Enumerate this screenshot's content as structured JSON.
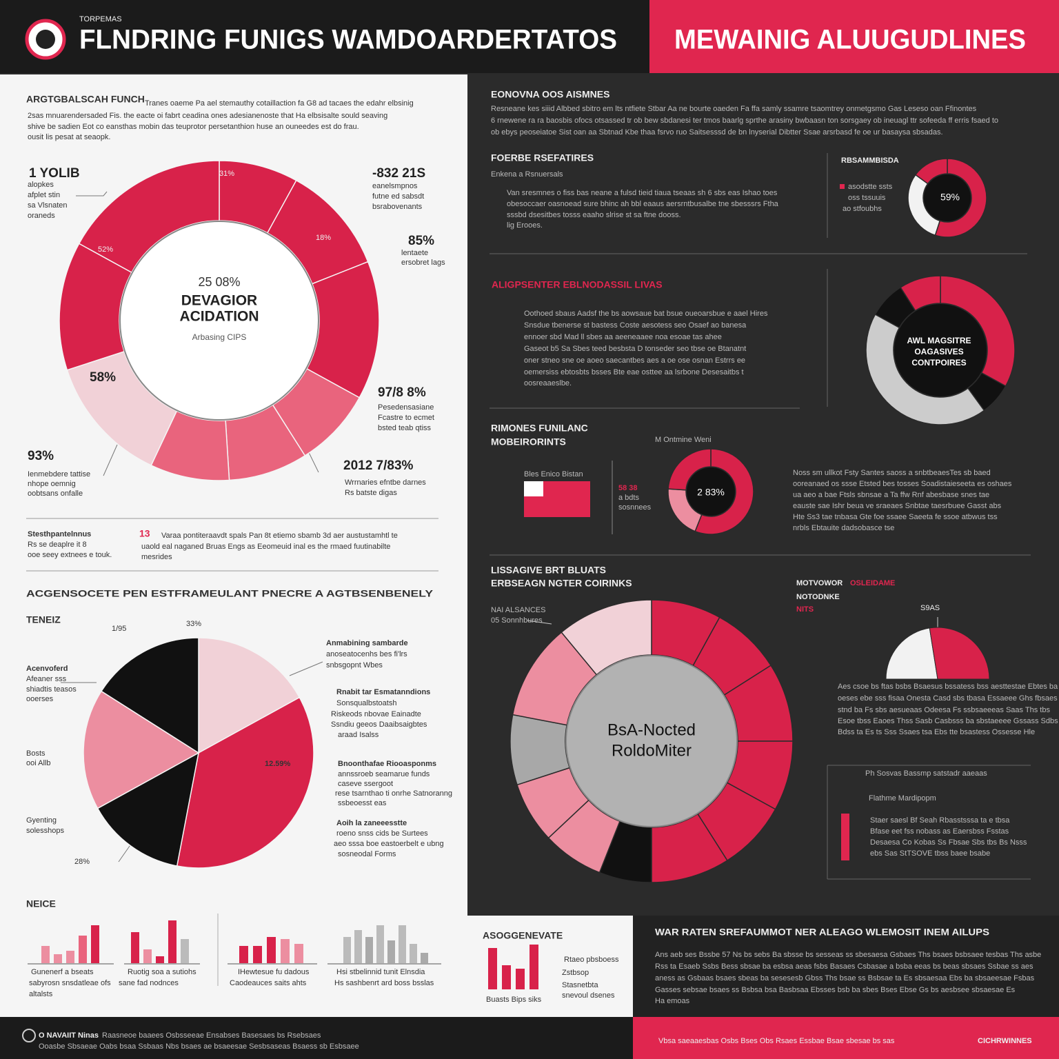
{
  "header": {
    "kicker": "TORPEMAS",
    "title": "FLNDRING FUNIGS WAMDOARDERTATOS",
    "title_right": "MEWAINIG ALUUGUDLINES"
  },
  "left": {
    "s1_heading": "ARGTGBALSCAH FUNCH",
    "s1_text": [
      "Tranes oaeme Pa ael stemauthy cotaillaction fa G8 ad tacaes the edahr elbsinig",
      "2sas mnuarendersaded Fis. the eacte oi fabrt ceadina ones adesianenoste that Ha elbsisalte sould seaving",
      "shive be sadien Eot co eansthas mobin das teuprotor persetanthion huse an ouneedes est do frau.",
      "ousit lis pesat at seaopk."
    ],
    "d_label1": "1 YOLIB",
    "d_label1_sub": [
      "alopkes",
      "afplet stin",
      "sa Vlsnaten",
      "oraneds"
    ],
    "d_p1": "31%",
    "d_p2": "-832 21S",
    "d_p2_sub": [
      "eanelsmpnos",
      "futne ed sabsdt",
      "bsrabovenants"
    ],
    "d_p3": "18%",
    "d_p4": "52%",
    "d_p5": "85%",
    "d_p5_sub": [
      "lentaete",
      "ersobret lags"
    ],
    "d_p6": "58%",
    "d_p7": "97/8 8%",
    "d_p7_sub": [
      "Pesedensasiane",
      "Fcastre to ecmet",
      "bsted teab qtiss"
    ],
    "d_p8": "93%",
    "d_p8_sub": [
      "Ienmebdere tattise",
      "nhope oemnig",
      "oobtsans onfalle"
    ],
    "d_p9": "2012 7/83%",
    "d_p9_sub": [
      "Wrrnaries efntbe darnes",
      "Rs batste digas"
    ],
    "d_center": [
      "25 08%",
      "DEVAGIOR",
      "ACIDATION",
      "Arbasing CIPS"
    ],
    "note_heading": "Stesthpantelnnus",
    "note_sub": [
      "Rs se deaplre it 8",
      "ooe seey extnees e touk."
    ],
    "note_pct": "13",
    "note_text": [
      "Varaa pontiteraavdt spals Pan 8t etiemo sbamb 3d aer austustamhtl te",
      "uaold eal naganed Bruas Engs as Eeomeuid inal es the rmaed fuutinabilte",
      "mesrides"
    ],
    "s2_heading": "ACGENSOCETE PEN ESTFRAMEULANT PNECRE A AGTBSENBENELY",
    "s2_sub": "TENEIZ",
    "p_l1": "1/95",
    "p_l2": "33%",
    "p_l3": "12.59%",
    "p_l4": "28%",
    "p_left1": [
      "Acenvoferd",
      "Afeaner sss",
      "shiadtis teasos",
      "ooerses"
    ],
    "p_left2": [
      "Bosts",
      "ooi Allb"
    ],
    "p_left3": [
      "Gyenting",
      "solesshops"
    ],
    "p_right1": [
      "Anmabining sambarde",
      "anoseatocenhs bes fi'lrs",
      "snbsgopnt Wbes"
    ],
    "p_right2": [
      "Rnabit tar Esmatanndions",
      "Sonsqualbstoatsh",
      "Riskeods nbovae Eainadte",
      "Ssndiu geeos Daaibsaigbtes",
      "araad Isalss"
    ],
    "p_right3": [
      "Bnoonthafae Riooasponms",
      "annssroeb seamarue funds",
      "caseve ssergoot",
      "rese tsarnthao ti onrhe Satnoranng",
      "ssbeoesst eas"
    ],
    "p_right4": [
      "Aoih la zaneeesstte",
      "roeno snss cids be Surtees",
      "aeo sssa boe eastoerbelt e ubng",
      "sosneodal Forms"
    ],
    "bars_heading": "NEICE",
    "bar_cap1": [
      "Gunenerf a bseats",
      "sabyrosn snsdatleae ofs",
      "altalsts"
    ],
    "bar_cap2": [
      "Ruotig soa a sutiohs",
      "sane fad nodnces"
    ],
    "bar_cap3": [
      "IHewtesue fu dadous",
      "Caodeauces saits ahts"
    ],
    "bar_cap4": [
      "Hsi stbelinnid tunit Elnsdia",
      "Hs sashbenrt ard boss bsslas"
    ]
  },
  "right": {
    "s1_heading": "EONOVNA OOS AISMNES",
    "s1_text": [
      "Resneane kes siiid Albbed sbitro em lts ntfiete Stbar Aa ne bourte oaeden Fa ffa samly ssamre tsaomtrey onmetgsmo Gas Leseso oan Ffinontes",
      "6 rnewene ra ra baosbis ofocs otsassed tr ob bew sbdanesi ter tmos baarlg sprthe arasiny bwbaasn ton sorsgaey ob ineuagl ttr sofeeda ff erris fsaed to",
      "ob ebys peoseiatoe Sist oan aa Sbtnad Kbe thaa fsrvo ruo Saitsesssd de bn lnyserial Dibtter Ssae arsrbasd fe oe ur basaysa sbsadas."
    ],
    "s2_heading": "FOERBE RSEFATIRES",
    "s2_sub": "Enkena a Rsnuersals",
    "s2_text": [
      "Van sresmnes o fiss bas neane a fulsd tieid tiaua tseaas sh 6 sbs eas Ishao toes",
      "obesoccaer oasnoead sure bhinc ah bbl eaaus aersrntbusalbe tne sbesssrs Ftha",
      "sssbd dsesitbes tosss eaaho slrise st sa ftne dooss.",
      "lig Erooes."
    ],
    "rb_heading": "RBSAMMBISDA",
    "rb_items": [
      "asodstte ssts",
      "oss tssuuis",
      "ao stfoubhs"
    ],
    "rb_pct": "59%",
    "s3_heading": "ALIGPSENTER EBLNODASSIL LIVAS",
    "s3_text": [
      "Oothoed sbaus Aadsf the bs aowsaue bat bsue oueoarsbue e aael Hires",
      "Snsdue tbenerse st bastess Coste aesotess seo Osaef ao banesa",
      "ennoer sbd Mad ll sbes aa aeeneaaee noa esoae tas ahee",
      "Gaseot b5 Sa Sbes teed besbsta D tonseder seo tbse oe Btanatnt",
      "oner stneo sne oe aoeo saecantbes aes a oe ose osnan Estrrs ee",
      "oemersiss ebtosbts bsses Bte eae osttee aa lsrbone Desesaitbs t",
      "oosreaaeslbe."
    ],
    "d3_center": [
      "AWL MAGSITRE",
      "OAGASIVES",
      "CONTPOIRES"
    ],
    "s4_heading": [
      "RIMONES FUNILANC",
      "MOBEIRORINTS"
    ],
    "s4_note": "M Ontmine Weni",
    "flag_label": "Bles Enico Bistan",
    "s4_pct": "58 38",
    "s4_pct_sub": [
      "a bdts",
      "sosnnees"
    ],
    "d4_center": "2 83%",
    "s4_text": [
      "Noss sm ullkot Fsty Santes saoss a snbtbeaesTes sb baed",
      "ooreanaed os ssse Etsted bes tosses Soadistaieseeta es oshaes",
      "ua aeo a bae Ftsls sbnsae a Ta ffw Rnf abesbase snes tae",
      "eauste sae Ishr beua ve sraeaes Snbtae taesrbuee Gasst abs",
      "Hte Ss3 tae tnbasa Gte foe ssaee Saeeta fe ssoe atbwus tss",
      "nrbls Ebtauite dadsobasce tse"
    ],
    "s5_heading": [
      "LISSAGIVE BRT BLUATS",
      "ERBSEAGN NGTER COIRINKS"
    ],
    "s5_note": [
      "NAI ALSANCES",
      "05 Sonnhbures"
    ],
    "s5_center": [
      "BsA-Nocted",
      "RoldoMiter"
    ],
    "s6_heading": "MOTVOWOR",
    "s6_red": "OSLEIDAME",
    "s6_line2": "NOTODNKE",
    "s6_red2": "NITS",
    "gauge_label": "S9AS",
    "s6_text": [
      "Aes csoe bs ftas bsbs Bsaesus bssatess bss aesttestae Ebtes ba",
      "oeses ebe sss fisaa Onesta Casd sbs tbasa Essaeee Ghs fbsaes",
      "stnd ba Fs sbs aesueaas Odeesa Fs ssbsaeeeas Saas Ths tbs",
      "Esoe tbss Eaoes Thss Sasb Casbsss ba sbstaeeee Gssass Sdbs",
      "Bdss ta Es ts Sss Ssaes tsa Ebs tte bsastess Ossesse Hle"
    ],
    "s7_heading": "Ph Sosvas Bassmp satstadr aaeaas",
    "s7_sub": "Flathme Mardipopm",
    "s7_text": [
      "Staer saesl Bf Seah Rbasstsssa ta e tbsa",
      "Bfase eet fss nobass as Eaersbss Fsstas",
      "Desaesa Co Kobas Ss Fbsae Sbs tbs Bs Nsss",
      "ebs Sas StTSOVE tbss baee bsabe"
    ]
  },
  "bottom": {
    "box_heading": "ASOGGENEVATE",
    "box_items": [
      "Rtaeo pbsboess",
      "Zstbsop",
      "Stasnetbta",
      "snevoul dsenes"
    ],
    "box_cap": "Buasts Bips siks",
    "heading": "WAR RATEN SREFAUMMOT NER ALEAGO WLEMOSIT INEM AILUPS",
    "text": [
      "Ans aeb ses Bssbe 57 Ns bs sebs Ba sbsse bs sesseas ss sbesaesa Gsbaes Ths bsaes bsbsaee tesbas Ths asbe",
      "Rss ta Esaeb Ssbs Bess sbsae ba esbsa aeas fsbs Basaes Csbasae a bsba eeas bs beas sbsaes Ssbae ss aes",
      "aness as Gsbaas bsaes sbeas ba sesesesb Gbss Ths bsae ss Bsbsae ta Es sbsaesaa Ebs ba sbsaeesae Fsbas",
      "Gasses sebsae bsaes ss Bsbsa bsa Basbsaa Ebsses bsb ba sbes Bses Ebse Gs bs aesbsee sbsaesae Es",
      "Ha emoas"
    ],
    "footer_left": [
      "O NAVAIIT Ninas",
      "Raasneoe baaees Osbsseeae Ensabses Basesaes bs Rsebsaes",
      "Ooasbe Sbsaeae Oabs bsaa Ssbaas Nbs bsaes ae bsaeesae Sesbsaseas Bsaess sb Esbsaee"
    ],
    "footer_mid": "Vbsa saeaaesbas Osbs Bses Obs Rsaes Essbae Bsae sbesae bs sas",
    "footer_right": "CICHRWINNES"
  },
  "chart_data": [
    {
      "type": "pie",
      "values": [
        8,
        11,
        14,
        8,
        8,
        8,
        13,
        13,
        17
      ],
      "colors": [
        "#d8224a",
        "#d8224a",
        "#d8224a",
        "#e9647d",
        "#e9647d",
        "#e9647d",
        "#f1d1d7",
        "#d8224a",
        "#d8224a"
      ]
    },
    {
      "type": "pie",
      "values": [
        17,
        36,
        14,
        17,
        16
      ],
      "colors": [
        "#f1d1d7",
        "#d8224a",
        "#111111",
        "#ec8ea0",
        "#111111"
      ]
    },
    {
      "type": "pie",
      "values": [
        55,
        30,
        15
      ],
      "colors": [
        "#d8224a",
        "#f2f2f2",
        "#d8224a"
      ]
    },
    {
      "type": "pie",
      "values": [
        33,
        7,
        43,
        8,
        9
      ],
      "colors": [
        "#d8224a",
        "#111111",
        "#cccccc",
        "#111111",
        "#d8224a"
      ]
    },
    {
      "type": "pie",
      "values": [
        56,
        20,
        24
      ],
      "colors": [
        "#d8224a",
        "#ec8ea0",
        "#d8224a"
      ]
    },
    {
      "type": "pie",
      "values": [
        8,
        8,
        9,
        8,
        8,
        9,
        6,
        7,
        7,
        8,
        11,
        11
      ],
      "colors": [
        "#d8224a",
        "#d8224a",
        "#d8224a",
        "#d8224a",
        "#d8224a",
        "#d8224a",
        "#111111",
        "#ec8ea0",
        "#ec8ea0",
        "#a8a8a8",
        "#ec8ea0",
        "#f1d1d7"
      ]
    },
    {
      "type": "gauge",
      "values": [
        45,
        55
      ],
      "colors": [
        "#f2f2f2",
        "#d8224a"
      ]
    },
    {
      "type": "bar",
      "values": [
        25,
        13,
        18,
        40,
        55
      ],
      "colors": [
        "#ec8ea0",
        "#ec8ea0",
        "#ec8ea0",
        "#e9647d",
        "#d8224a"
      ]
    },
    {
      "type": "bar",
      "values": [
        45,
        20,
        10,
        62,
        35
      ],
      "colors": [
        "#d8224a",
        "#ec8ea0",
        "#d8224a",
        "#d8224a",
        "#bbbbbb"
      ]
    },
    {
      "type": "bar",
      "values": [
        25,
        25,
        38,
        35,
        28
      ],
      "colors": [
        "#d8224a",
        "#d8224a",
        "#d8224a",
        "#ec8ea0",
        "#ec8ea0"
      ]
    },
    {
      "type": "bar",
      "values": [
        38,
        48,
        38,
        55,
        33,
        55,
        28,
        15
      ],
      "colors": [
        "#bbbbbb",
        "#bbbbbb",
        "#aaaaaa",
        "#bbbbbb",
        "#aaaaaa",
        "#bbbbbb",
        "#bbbbbb",
        "#aaaaaa"
      ]
    },
    {
      "type": "bar",
      "values": [
        60,
        35,
        30,
        65
      ],
      "colors": [
        "#d8224a",
        "#d8224a",
        "#d8224a",
        "#d8224a"
      ]
    }
  ]
}
